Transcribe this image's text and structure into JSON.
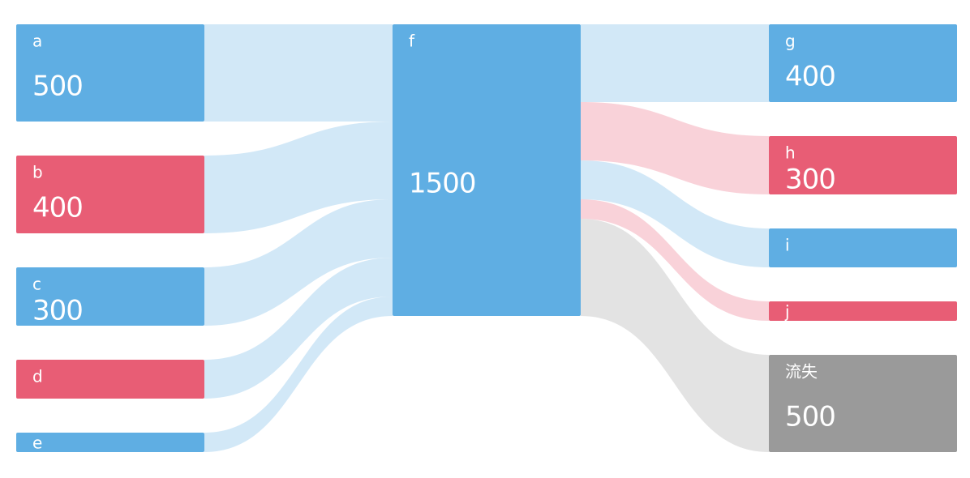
{
  "chart_data": {
    "type": "sankey",
    "nodes": [
      {
        "name": "a",
        "value": 500,
        "color": "#5faee3"
      },
      {
        "name": "b",
        "value": 400,
        "color": "#e85d75"
      },
      {
        "name": "c",
        "value": 300,
        "color": "#5faee3"
      },
      {
        "name": "d",
        "value": 200,
        "color": "#e85d75"
      },
      {
        "name": "e",
        "value": 100,
        "color": "#5faee3"
      },
      {
        "name": "f",
        "value": 1500,
        "color": "#5faee3"
      },
      {
        "name": "g",
        "value": 400,
        "color": "#5faee3"
      },
      {
        "name": "h",
        "value": 300,
        "color": "#e85d75"
      },
      {
        "name": "i",
        "value": 200,
        "color": "#5faee3"
      },
      {
        "name": "j",
        "value": 100,
        "color": "#e85d75"
      },
      {
        "name": "流失",
        "value": 500,
        "color": "#9a9a9a"
      }
    ],
    "links": [
      {
        "source": "a",
        "target": "f",
        "value": 500
      },
      {
        "source": "b",
        "target": "f",
        "value": 400
      },
      {
        "source": "c",
        "target": "f",
        "value": 300
      },
      {
        "source": "d",
        "target": "f",
        "value": 200
      },
      {
        "source": "e",
        "target": "f",
        "value": 100
      },
      {
        "source": "f",
        "target": "g",
        "value": 400
      },
      {
        "source": "f",
        "target": "h",
        "value": 300
      },
      {
        "source": "f",
        "target": "i",
        "value": 200
      },
      {
        "source": "f",
        "target": "j",
        "value": 100
      },
      {
        "source": "f",
        "target": "流失",
        "value": 500
      }
    ]
  }
}
